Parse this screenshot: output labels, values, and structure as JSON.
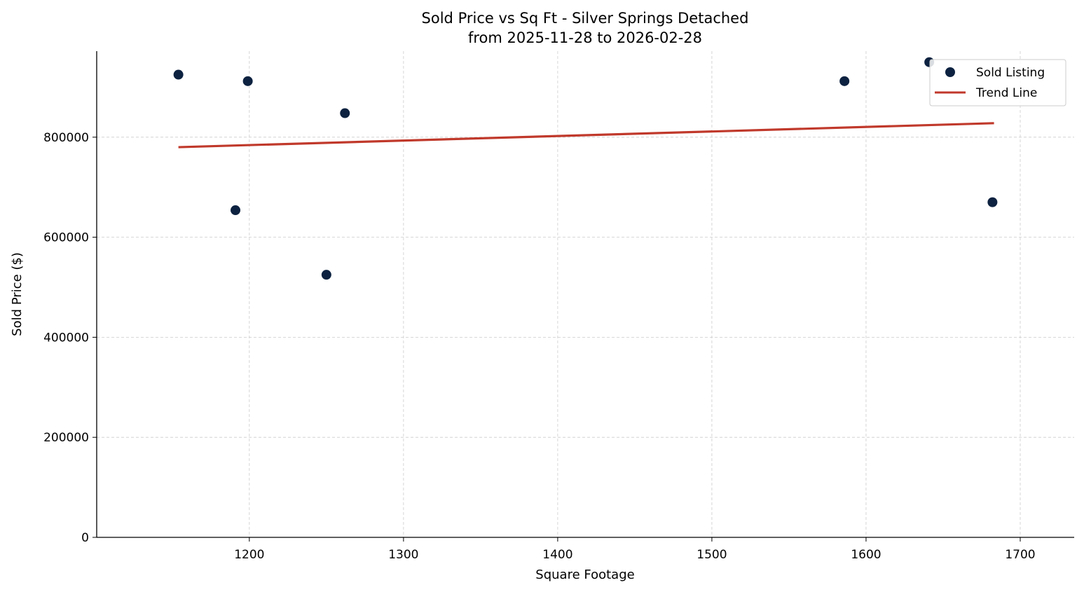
{
  "chart_data": {
    "type": "scatter",
    "title": "Sold Price vs Sq Ft - Silver Springs Detached",
    "subtitle": "from 2025-11-28 to 2026-02-28",
    "xlabel": "Square Footage",
    "ylabel": "Sold Price ($)",
    "xlim": [
      1101,
      1735
    ],
    "ylim": [
      0,
      972000
    ],
    "xticks": [
      1200,
      1300,
      1400,
      1500,
      1600,
      1700
    ],
    "yticks": [
      0,
      200000,
      400000,
      600000,
      800000
    ],
    "grid": true,
    "legend": "top-right",
    "series": [
      {
        "name": "Sold Listing",
        "type": "scatter",
        "color": "#0d2240",
        "points": [
          {
            "x": 1154,
            "y": 925000
          },
          {
            "x": 1199,
            "y": 912000
          },
          {
            "x": 1262,
            "y": 848000
          },
          {
            "x": 1191,
            "y": 654000
          },
          {
            "x": 1250,
            "y": 525000
          },
          {
            "x": 1586,
            "y": 912000
          },
          {
            "x": 1641,
            "y": 950000
          },
          {
            "x": 1682,
            "y": 670000
          }
        ]
      },
      {
        "name": "Trend Line",
        "type": "line",
        "color": "#c0392b",
        "points": [
          {
            "x": 1154,
            "y": 780000
          },
          {
            "x": 1683,
            "y": 828000
          }
        ]
      }
    ]
  }
}
